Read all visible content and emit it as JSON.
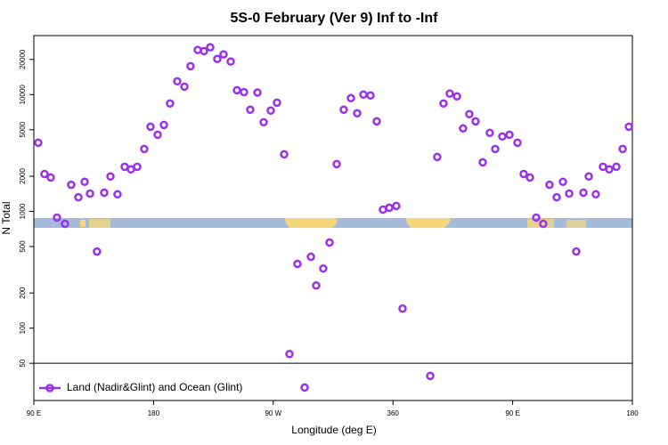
{
  "chart_data": {
    "type": "scatter",
    "title": "5S-0 February (Ver 9)   Inf to -Inf",
    "x_label": "Longitude (deg E)",
    "y_label": "N Total",
    "x": [
      93.3,
      98.0,
      102.7,
      107.4,
      113.4,
      118.1,
      123.5,
      128.2,
      132.2,
      137.5,
      142.9,
      147.6,
      152.9,
      158.3,
      163.0,
      167.7,
      173.0,
      177.7,
      183.1,
      187.8,
      192.4,
      197.8,
      203.2,
      207.8,
      213.2,
      217.9,
      222.6,
      227.9,
      232.6,
      238.0,
      242.7,
      248.0,
      252.7,
      258.1,
      262.8,
      268.1,
      272.8,
      278.2,
      282.2,
      288.2,
      293.6,
      298.3,
      302.3,
      307.6,
      312.3,
      317.7,
      323.0,
      328.4,
      333.1,
      337.8,
      343.1,
      347.8,
      352.5,
      357.2,
      362.5,
      367.2,
      388.0,
      393.3,
      398.0,
      402.7,
      408.1,
      412.7,
      417.4,
      422.1,
      427.5,
      432.8,
      436.9,
      442.2,
      447.6,
      453.6,
      458.3,
      463.0,
      467.7,
      473.0,
      477.7,
      483.1,
      487.8,
      492.5,
      497.8,
      503.2,
      507.2,
      512.5,
      517.9,
      522.6,
      528.0,
      532.7,
      537.4
    ],
    "series": [
      {
        "name": "Land (Nadir&Glint) and Ocean (Glint)",
        "color": "#9b30f0",
        "values": [
          3870,
          2090,
          1950,
          885,
          782,
          1690,
          1320,
          1790,
          1420,
          453,
          1445,
          1990,
          1400,
          2410,
          2290,
          2410,
          3420,
          5310,
          4530,
          5500,
          8390,
          13000,
          11700,
          17500,
          24100,
          23600,
          25400,
          20200,
          22100,
          19200,
          10900,
          10500,
          7420,
          10400,
          5800,
          7290,
          8530,
          3080,
          60,
          355,
          31,
          408,
          232,
          324,
          541,
          2540,
          7420,
          9320,
          6920,
          10000,
          9820,
          5900,
          1035,
          1074,
          1112,
          147,
          39,
          2920,
          8390,
          10200,
          9650,
          5130,
          6800,
          5900,
          2630,
          4700,
          3420,
          4380,
          4530,
          3870,
          2090,
          1950,
          885,
          782,
          1690,
          1320,
          1790,
          1420,
          453,
          1445,
          1990,
          1400,
          2410,
          2290,
          2410,
          3420,
          5310
        ]
      }
    ],
    "xlim": [
      90,
      540
    ],
    "xticks": [
      {
        "value": 90,
        "label": "90 E"
      },
      180,
      {
        "value": 270,
        "label": "90 W"
      },
      360,
      {
        "value": 450,
        "label": "90 E"
      },
      {
        "value": 540,
        "label": "180"
      }
    ],
    "ylim": [
      24,
      32000
    ],
    "yticks": [
      50,
      100,
      200,
      500,
      1000,
      2000,
      5000,
      10000,
      20000
    ],
    "log_y": true,
    "hline": 50,
    "legend": "bottom-left"
  }
}
